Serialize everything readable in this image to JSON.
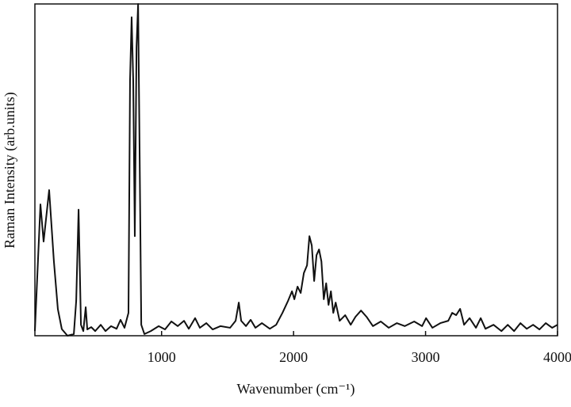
{
  "chart_data": {
    "type": "line",
    "x_label": "Wavenumber (cm⁻¹)",
    "y_label": "Raman Intensity (arb.units)",
    "xlim": [
      40,
      4000
    ],
    "ylim": [
      0,
      100
    ],
    "xticks": [
      1000,
      2000,
      3000,
      4000
    ],
    "color": "#111111",
    "x": [
      40,
      82,
      106,
      148,
      184,
      214,
      244,
      287,
      335,
      353,
      371,
      389,
      407,
      425,
      437,
      467,
      497,
      539,
      575,
      617,
      659,
      689,
      719,
      749,
      761,
      773,
      785,
      797,
      810,
      822,
      834,
      846,
      870,
      918,
      978,
      1026,
      1074,
      1122,
      1170,
      1206,
      1254,
      1290,
      1339,
      1387,
      1447,
      1519,
      1561,
      1585,
      1603,
      1639,
      1675,
      1711,
      1760,
      1820,
      1868,
      1916,
      1958,
      1988,
      2006,
      2030,
      2054,
      2078,
      2102,
      2120,
      2138,
      2156,
      2174,
      2193,
      2211,
      2229,
      2247,
      2265,
      2283,
      2301,
      2319,
      2349,
      2391,
      2433,
      2469,
      2511,
      2553,
      2601,
      2661,
      2721,
      2782,
      2842,
      2914,
      2974,
      3004,
      3052,
      3112,
      3172,
      3202,
      3232,
      3262,
      3292,
      3334,
      3382,
      3418,
      3454,
      3515,
      3575,
      3623,
      3671,
      3719,
      3767,
      3815,
      3863,
      3911,
      3959,
      4000
    ],
    "values": [
      1.4,
      39.6,
      28.4,
      43.9,
      22.4,
      8,
      2,
      0,
      0.5,
      10.5,
      38,
      3.3,
      1.4,
      8.6,
      1.9,
      2.6,
      1.4,
      3.3,
      1.4,
      2.9,
      2.1,
      4.8,
      2.4,
      6.9,
      77,
      96,
      77,
      30,
      87,
      100,
      53,
      3.3,
      0.5,
      1.4,
      2.9,
      1.9,
      4.3,
      2.9,
      4.5,
      2.1,
      5.3,
      2.4,
      3.8,
      1.9,
      2.9,
      2.4,
      4.5,
      10,
      4.5,
      2.9,
      4.8,
      2.4,
      3.8,
      2.1,
      3.3,
      6.9,
      10.5,
      13.4,
      11,
      14.8,
      12.9,
      18.9,
      21.2,
      30,
      27.2,
      16.5,
      24.3,
      26,
      22.4,
      11,
      15.8,
      9.3,
      13.4,
      6.9,
      10,
      4.5,
      6.2,
      3.3,
      5.7,
      7.6,
      5.7,
      2.9,
      4.3,
      2.4,
      3.8,
      2.9,
      4.3,
      2.9,
      5.3,
      2.4,
      3.8,
      4.5,
      6.9,
      6.2,
      8.1,
      3.3,
      5.3,
      2.4,
      5.3,
      2.1,
      3.3,
      1.4,
      3.3,
      1.4,
      3.8,
      2.1,
      3.3,
      1.9,
      3.8,
      2.4,
      3.3
    ]
  }
}
